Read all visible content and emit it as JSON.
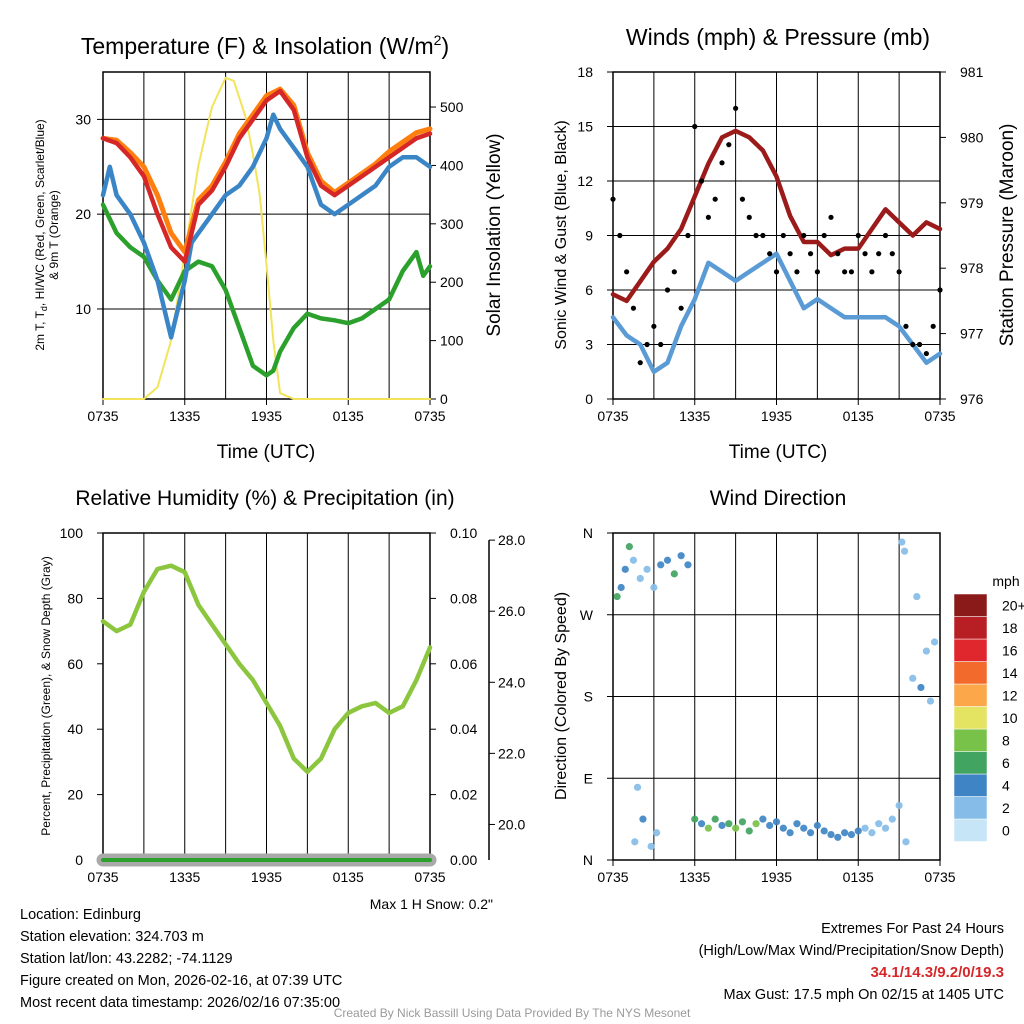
{
  "footer": {
    "location": "Location: Edinburg",
    "elevation": "Station elevation: 324.703 m",
    "latlon": "Station lat/lon: 43.2282; -74.1129",
    "created": "Figure created on Mon, 2026-02-16, at 07:39 UTC",
    "recent": "Most recent data timestamp: 2026/02/16 07:35:00",
    "extremes_title": "Extremes For Past 24 Hours",
    "extremes_sub": "(High/Low/Max Wind/Precipitation/Snow Depth)",
    "extremes_values": "34.1/14.3/9.2/0/19.3",
    "max_gust": "Max Gust: 17.5 mph On 02/15 at 1405 UTC",
    "max_snow": "Max 1 H Snow: 0.2\"",
    "credit": "Created By Nick Bassill Using Data Provided By The NYS Mesonet"
  },
  "colors": {
    "temp": "#d62728",
    "heatindex": "#2ca02c",
    "dewpoint": "#3a85c6",
    "t9m": "#ff7f0e",
    "solar": "#f2e45a",
    "wind": "#5a9bd5",
    "gust": "#000000",
    "pressure": "#9b1b1b",
    "rh": "#8cc63f",
    "precip": "#2ca02c",
    "snow": "#a9a9a9"
  },
  "chart_data": [
    {
      "id": "temperature",
      "type": "line",
      "title": "Temperature (F) & Insolation (W/m²)",
      "xlabel": "Time (UTC)",
      "ylabel": "2m T, Td, HI/WC (Red, Green, Scarlet/Blue) & 9m T (Orange)",
      "ylabel_lines": [
        "2m T, T",
        "d",
        ", HI/WC (Red, Green, Scarlet/Blue)",
        "& 9m T (Orange)"
      ],
      "y2label": "Solar Insolation (Yellow)",
      "x_ticks": [
        "0735",
        "1335",
        "1935",
        "0135",
        "0735"
      ],
      "xlim": [
        0,
        24
      ],
      "ylim": [
        0.5,
        35
      ],
      "y_ticks": [
        10,
        20,
        30
      ],
      "y2lim": [
        0,
        560
      ],
      "y2_ticks": [
        0,
        100,
        200,
        300,
        400,
        500
      ],
      "series": [
        {
          "name": "2m Temperature",
          "color": "#d62728",
          "axis": "left",
          "x": [
            0,
            1,
            2,
            3,
            4,
            5,
            6,
            7,
            8,
            9,
            10,
            11,
            12,
            13,
            14,
            15,
            16,
            17,
            18,
            19,
            20,
            21,
            22,
            23,
            24
          ],
          "y": [
            28,
            27.5,
            26,
            24,
            20,
            16.5,
            15,
            21,
            22.5,
            25,
            28,
            30,
            32,
            33,
            31,
            26,
            23,
            22,
            23,
            24,
            25,
            26,
            27,
            28,
            28.5
          ]
        },
        {
          "name": "9m Temperature",
          "color": "#ff7f0e",
          "axis": "left",
          "x": [
            0,
            1,
            2,
            3,
            4,
            5,
            6,
            7,
            8,
            9,
            10,
            11,
            12,
            13,
            14,
            15,
            16,
            17,
            18,
            19,
            20,
            21,
            22,
            23,
            24
          ],
          "y": [
            28,
            27.8,
            26.5,
            25,
            22,
            18,
            16,
            21.5,
            23,
            25.5,
            28.5,
            30.5,
            32.5,
            33.2,
            31.5,
            26.5,
            23.5,
            22.3,
            23.3,
            24.3,
            25.3,
            26.6,
            27.6,
            28.6,
            29
          ]
        },
        {
          "name": "Wind Chill",
          "color": "#3a85c6",
          "axis": "left",
          "x": [
            0,
            0.5,
            1,
            2,
            3,
            4,
            4.5,
            5,
            5.5,
            6,
            6.5,
            7,
            8,
            9,
            10,
            11,
            12,
            12.5,
            13,
            14,
            15,
            16,
            17,
            18,
            19,
            20,
            21,
            22,
            23,
            24
          ],
          "y": [
            22,
            25,
            22,
            20,
            17,
            13,
            10,
            7,
            10,
            13,
            17,
            18,
            20,
            22,
            23,
            25,
            28,
            30.5,
            29,
            27,
            25,
            21,
            20,
            21,
            22,
            23,
            25,
            26,
            26,
            25
          ]
        },
        {
          "name": "Dew Point",
          "color": "#2ca02c",
          "axis": "left",
          "x": [
            0,
            1,
            2,
            3,
            4,
            5,
            6,
            7,
            8,
            9,
            10,
            11,
            12,
            12.5,
            13,
            14,
            15,
            16,
            17,
            18,
            19,
            20,
            21,
            22,
            23,
            23.5,
            24
          ],
          "y": [
            21,
            18,
            16.5,
            15.5,
            13,
            11,
            14,
            15,
            14.5,
            12,
            8,
            4,
            3,
            3.5,
            5.5,
            8,
            9.5,
            9,
            8.8,
            8.5,
            9,
            10,
            11,
            14,
            16,
            13.5,
            14.5
          ]
        },
        {
          "name": "Solar Insolation",
          "color": "#f2e45a",
          "axis": "right",
          "x": [
            0,
            3,
            4,
            5,
            6,
            7,
            8,
            9,
            9.6,
            10.5,
            11,
            11.5,
            12,
            12.5,
            13,
            14,
            24
          ],
          "y": [
            0,
            0,
            20,
            100,
            250,
            400,
            500,
            550,
            545,
            480,
            420,
            350,
            230,
            100,
            10,
            0,
            0
          ]
        }
      ]
    },
    {
      "id": "winds",
      "type": "line",
      "title": "Winds (mph) & Pressure (mb)",
      "xlabel": "Time (UTC)",
      "ylabel": "Sonic Wind & Gust (Blue, Black)",
      "y2label": "Station Pressure (Maroon)",
      "x_ticks": [
        "0735",
        "1335",
        "1935",
        "0135",
        "0735"
      ],
      "xlim": [
        0,
        24
      ],
      "ylim": [
        0,
        18
      ],
      "y_ticks": [
        0,
        3,
        6,
        9,
        12,
        15,
        18
      ],
      "y2lim": [
        976,
        981
      ],
      "y2_ticks": [
        976,
        977,
        978,
        979,
        980,
        981
      ],
      "series": [
        {
          "name": "Sonic Wind",
          "color": "#5a9bd5",
          "axis": "left",
          "x": [
            0,
            1,
            2,
            3,
            4,
            5,
            6,
            7,
            8,
            9,
            10,
            11,
            12,
            13,
            14,
            15,
            16,
            17,
            18,
            19,
            20,
            21,
            22,
            23,
            24
          ],
          "y": [
            4.5,
            3.5,
            3,
            1.5,
            2,
            4,
            5.5,
            7.5,
            7,
            6.5,
            7,
            7.5,
            8,
            6.5,
            5,
            5.5,
            5,
            4.5,
            4.5,
            4.5,
            4.5,
            4,
            3,
            2,
            2.5
          ]
        },
        {
          "name": "Gust",
          "color": "#000000",
          "axis": "left",
          "style": "points",
          "x": [
            0,
            0.5,
            1,
            1.5,
            2,
            2.5,
            3,
            3.5,
            4,
            4.5,
            5,
            5.5,
            6,
            6.5,
            7,
            7.5,
            8,
            8.5,
            9,
            9.5,
            10,
            10.5,
            11,
            11.5,
            12,
            12.5,
            13,
            13.5,
            14,
            14.5,
            15,
            15.5,
            16,
            16.5,
            17,
            17.5,
            18,
            18.5,
            19,
            19.5,
            20,
            20.5,
            21,
            21.5,
            22,
            22.5,
            23,
            23.5,
            24
          ],
          "y": [
            11,
            9,
            7,
            5,
            2,
            3,
            4,
            3,
            6,
            7,
            5,
            9,
            15,
            12,
            10,
            11,
            13,
            14,
            16,
            11,
            10,
            9,
            9,
            8,
            7,
            9,
            8,
            7,
            9,
            8,
            7,
            9,
            10,
            8,
            7,
            7,
            9,
            8,
            7,
            8,
            9,
            8,
            7,
            4,
            3,
            3,
            2.5,
            4,
            6
          ]
        },
        {
          "name": "Station Pressure",
          "color": "#9b1b1b",
          "axis": "right",
          "x": [
            0,
            1,
            2,
            3,
            4,
            5,
            6,
            7,
            8,
            9,
            10,
            11,
            12,
            13,
            14,
            15,
            16,
            17,
            18,
            19,
            20,
            21,
            22,
            23,
            24
          ],
          "y": [
            977.6,
            977.5,
            977.8,
            978.1,
            978.3,
            978.6,
            979.1,
            979.6,
            980.0,
            980.1,
            980.0,
            979.8,
            979.4,
            978.8,
            978.4,
            978.4,
            978.2,
            978.3,
            978.3,
            978.6,
            978.9,
            978.7,
            978.5,
            978.7,
            978.6
          ]
        }
      ]
    },
    {
      "id": "humidity",
      "type": "line",
      "title": "Relative Humidity (%) & Precipitation (in)",
      "ylabel": "Percent, Precipitation (Green), & Snow Depth (Gray)",
      "x_ticks": [
        "0735",
        "1335",
        "1935",
        "0135",
        "0735"
      ],
      "xlim": [
        0,
        24
      ],
      "ylim": [
        0,
        100
      ],
      "y_ticks": [
        0,
        20,
        40,
        60,
        80,
        100
      ],
      "y2lim": [
        0,
        0.1
      ],
      "y2_ticks": [
        "0.00",
        "0.02",
        "0.04",
        "0.06",
        "0.08",
        "0.10"
      ],
      "y3lim": [
        19,
        28.2
      ],
      "y3_ticks": [
        "20.0",
        "22.0",
        "24.0",
        "26.0",
        "28.0"
      ],
      "series": [
        {
          "name": "Relative Humidity",
          "color": "#8cc63f",
          "axis": "left",
          "x": [
            0,
            1,
            2,
            3,
            4,
            5,
            6,
            7,
            8,
            9,
            10,
            11,
            12,
            13,
            14,
            15,
            16,
            17,
            18,
            19,
            20,
            21,
            22,
            23,
            24
          ],
          "y": [
            73,
            70,
            72,
            82,
            89,
            90,
            88,
            78,
            72,
            66,
            60,
            55,
            48,
            41,
            31,
            27,
            31,
            40,
            45,
            47,
            48,
            45,
            47,
            55,
            65
          ]
        },
        {
          "name": "Precipitation",
          "color": "#2ca02c",
          "axis": "right",
          "x": [
            0,
            24
          ],
          "y": [
            0,
            0
          ]
        },
        {
          "name": "Snow Depth",
          "color": "#a9a9a9",
          "axis": "right2",
          "x": [
            0,
            24
          ],
          "y": [
            19.3,
            19.3
          ]
        }
      ]
    },
    {
      "id": "direction",
      "type": "scatter",
      "title": "Wind Direction",
      "ylabel": "Direction (Colored By Speed)",
      "x_ticks": [
        "0735",
        "1335",
        "1935",
        "0135",
        "0735"
      ],
      "xlim": [
        0,
        24
      ],
      "ylim": [
        0,
        360
      ],
      "y_tick_labels": [
        "N",
        "E",
        "S",
        "W",
        "N"
      ],
      "colorbar_title": "mph",
      "colorbar_labels": [
        "0",
        "2",
        "4",
        "6",
        "8",
        "10",
        "12",
        "14",
        "16",
        "18",
        "20+"
      ],
      "colorbar_colors": [
        "#c6e5f7",
        "#86bde8",
        "#3f85c6",
        "#41a460",
        "#79c24a",
        "#e4e462",
        "#fba74a",
        "#f26a2c",
        "#e0272d",
        "#b81f25",
        "#8a1a1a"
      ],
      "points": [
        {
          "t": 0.3,
          "dir": 290,
          "spd": 6
        },
        {
          "t": 0.6,
          "dir": 300,
          "spd": 5
        },
        {
          "t": 0.9,
          "dir": 320,
          "spd": 4
        },
        {
          "t": 1.2,
          "dir": 345,
          "spd": 6
        },
        {
          "t": 1.5,
          "dir": 330,
          "spd": 3
        },
        {
          "t": 2.0,
          "dir": 310,
          "spd": 2
        },
        {
          "t": 2.5,
          "dir": 320,
          "spd": 3
        },
        {
          "t": 3.0,
          "dir": 300,
          "spd": 2
        },
        {
          "t": 3.5,
          "dir": 325,
          "spd": 4
        },
        {
          "t": 4.0,
          "dir": 330,
          "spd": 4
        },
        {
          "t": 4.5,
          "dir": 315,
          "spd": 6
        },
        {
          "t": 5.0,
          "dir": 335,
          "spd": 5
        },
        {
          "t": 5.5,
          "dir": 325,
          "spd": 4
        },
        {
          "t": 1.6,
          "dir": 20,
          "spd": 2
        },
        {
          "t": 1.8,
          "dir": 80,
          "spd": 3
        },
        {
          "t": 2.2,
          "dir": 45,
          "spd": 4
        },
        {
          "t": 2.8,
          "dir": 15,
          "spd": 3
        },
        {
          "t": 3.2,
          "dir": 30,
          "spd": 2
        },
        {
          "t": 6.0,
          "dir": 45,
          "spd": 6
        },
        {
          "t": 6.5,
          "dir": 40,
          "spd": 4
        },
        {
          "t": 7.0,
          "dir": 35,
          "spd": 8
        },
        {
          "t": 7.5,
          "dir": 45,
          "spd": 6
        },
        {
          "t": 8.0,
          "dir": 38,
          "spd": 5
        },
        {
          "t": 8.5,
          "dir": 40,
          "spd": 6
        },
        {
          "t": 9.0,
          "dir": 35,
          "spd": 8
        },
        {
          "t": 9.5,
          "dir": 42,
          "spd": 7
        },
        {
          "t": 10.0,
          "dir": 32,
          "spd": 6
        },
        {
          "t": 10.5,
          "dir": 40,
          "spd": 8
        },
        {
          "t": 11.0,
          "dir": 45,
          "spd": 5
        },
        {
          "t": 11.5,
          "dir": 38,
          "spd": 4
        },
        {
          "t": 12.0,
          "dir": 42,
          "spd": 4
        },
        {
          "t": 12.5,
          "dir": 35,
          "spd": 5
        },
        {
          "t": 13.0,
          "dir": 30,
          "spd": 4
        },
        {
          "t": 13.5,
          "dir": 40,
          "spd": 4
        },
        {
          "t": 14.0,
          "dir": 35,
          "spd": 4
        },
        {
          "t": 14.5,
          "dir": 30,
          "spd": 4
        },
        {
          "t": 15.0,
          "dir": 38,
          "spd": 4
        },
        {
          "t": 15.5,
          "dir": 32,
          "spd": 4
        },
        {
          "t": 16.0,
          "dir": 28,
          "spd": 4
        },
        {
          "t": 16.5,
          "dir": 25,
          "spd": 4
        },
        {
          "t": 17.0,
          "dir": 30,
          "spd": 4
        },
        {
          "t": 17.5,
          "dir": 28,
          "spd": 4
        },
        {
          "t": 18.0,
          "dir": 32,
          "spd": 4
        },
        {
          "t": 18.5,
          "dir": 35,
          "spd": 3
        },
        {
          "t": 19.0,
          "dir": 30,
          "spd": 3
        },
        {
          "t": 19.5,
          "dir": 40,
          "spd": 3
        },
        {
          "t": 20.0,
          "dir": 35,
          "spd": 2
        },
        {
          "t": 20.5,
          "dir": 45,
          "spd": 3
        },
        {
          "t": 21.0,
          "dir": 60,
          "spd": 2
        },
        {
          "t": 21.5,
          "dir": 20,
          "spd": 2
        },
        {
          "t": 22.0,
          "dir": 200,
          "spd": 3
        },
        {
          "t": 22.3,
          "dir": 290,
          "spd": 2
        },
        {
          "t": 22.6,
          "dir": 190,
          "spd": 4
        },
        {
          "t": 23.0,
          "dir": 230,
          "spd": 2
        },
        {
          "t": 23.3,
          "dir": 175,
          "spd": 3
        },
        {
          "t": 23.6,
          "dir": 240,
          "spd": 2
        },
        {
          "t": 21.2,
          "dir": 350,
          "spd": 2
        },
        {
          "t": 21.4,
          "dir": 340,
          "spd": 2
        }
      ]
    }
  ]
}
